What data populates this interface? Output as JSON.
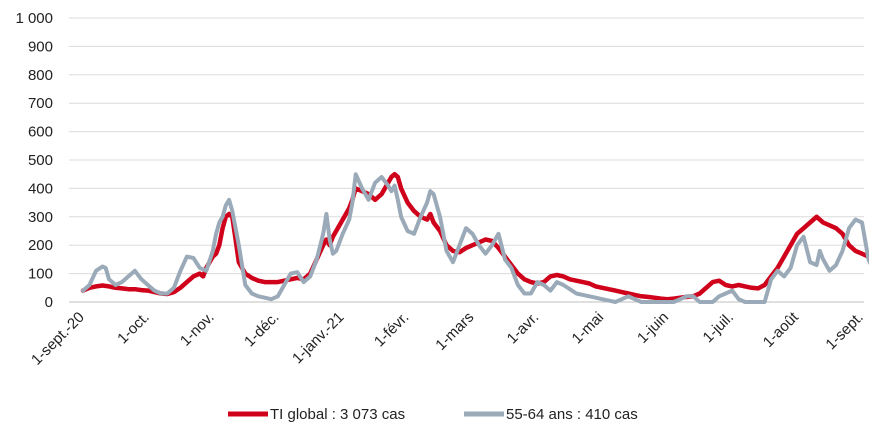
{
  "chart_data": {
    "type": "line",
    "title": "",
    "xlabel": "",
    "ylabel": "",
    "ylim": [
      0,
      1000
    ],
    "yticks": [
      "0",
      "100",
      "200",
      "300",
      "400",
      "500",
      "600",
      "700",
      "800",
      "900",
      "1 000"
    ],
    "grid": "horizontal",
    "legend_position": "bottom",
    "x_categories": [
      "1-sept.-20",
      "1-oct.",
      "1-nov.",
      "1-déc.",
      "1-janv.-21",
      "1-févr.",
      "1-mars",
      "1-avr.",
      "1-mai",
      "1-juin",
      "1-juil.",
      "1-août",
      "1-sept."
    ],
    "series": [
      {
        "name": "TI global : 3 073 cas",
        "color": "#d0021b",
        "points": [
          [
            0,
            40
          ],
          [
            0.1,
            50
          ],
          [
            0.2,
            55
          ],
          [
            0.3,
            58
          ],
          [
            0.4,
            55
          ],
          [
            0.5,
            50
          ],
          [
            0.6,
            48
          ],
          [
            0.7,
            45
          ],
          [
            0.8,
            45
          ],
          [
            0.9,
            42
          ],
          [
            1.0,
            40
          ],
          [
            1.1,
            35
          ],
          [
            1.2,
            30
          ],
          [
            1.3,
            28
          ],
          [
            1.4,
            35
          ],
          [
            1.5,
            50
          ],
          [
            1.6,
            70
          ],
          [
            1.7,
            90
          ],
          [
            1.8,
            100
          ],
          [
            1.85,
            90
          ],
          [
            1.9,
            120
          ],
          [
            2.0,
            160
          ],
          [
            2.05,
            170
          ],
          [
            2.1,
            200
          ],
          [
            2.15,
            260
          ],
          [
            2.2,
            300
          ],
          [
            2.25,
            310
          ],
          [
            2.3,
            300
          ],
          [
            2.35,
            220
          ],
          [
            2.4,
            140
          ],
          [
            2.45,
            120
          ],
          [
            2.5,
            100
          ],
          [
            2.6,
            85
          ],
          [
            2.7,
            75
          ],
          [
            2.8,
            70
          ],
          [
            2.9,
            70
          ],
          [
            3.0,
            70
          ],
          [
            3.1,
            75
          ],
          [
            3.2,
            80
          ],
          [
            3.3,
            85
          ],
          [
            3.4,
            80
          ],
          [
            3.5,
            100
          ],
          [
            3.6,
            150
          ],
          [
            3.7,
            200
          ],
          [
            3.75,
            220
          ],
          [
            3.8,
            200
          ],
          [
            3.85,
            230
          ],
          [
            3.9,
            250
          ],
          [
            4.0,
            290
          ],
          [
            4.1,
            330
          ],
          [
            4.15,
            360
          ],
          [
            4.2,
            400
          ],
          [
            4.3,
            390
          ],
          [
            4.4,
            380
          ],
          [
            4.5,
            360
          ],
          [
            4.6,
            380
          ],
          [
            4.7,
            420
          ],
          [
            4.75,
            440
          ],
          [
            4.8,
            450
          ],
          [
            4.85,
            440
          ],
          [
            4.9,
            400
          ],
          [
            5.0,
            350
          ],
          [
            5.1,
            320
          ],
          [
            5.2,
            300
          ],
          [
            5.3,
            290
          ],
          [
            5.35,
            310
          ],
          [
            5.4,
            280
          ],
          [
            5.5,
            250
          ],
          [
            5.6,
            200
          ],
          [
            5.7,
            180
          ],
          [
            5.8,
            175
          ],
          [
            5.9,
            190
          ],
          [
            6.0,
            200
          ],
          [
            6.1,
            210
          ],
          [
            6.2,
            220
          ],
          [
            6.3,
            215
          ],
          [
            6.4,
            190
          ],
          [
            6.5,
            160
          ],
          [
            6.6,
            130
          ],
          [
            6.7,
            100
          ],
          [
            6.8,
            80
          ],
          [
            6.9,
            70
          ],
          [
            7.0,
            65
          ],
          [
            7.1,
            70
          ],
          [
            7.2,
            90
          ],
          [
            7.3,
            95
          ],
          [
            7.4,
            90
          ],
          [
            7.5,
            80
          ],
          [
            7.6,
            75
          ],
          [
            7.7,
            70
          ],
          [
            7.8,
            65
          ],
          [
            7.9,
            55
          ],
          [
            8.0,
            50
          ],
          [
            8.1,
            45
          ],
          [
            8.2,
            40
          ],
          [
            8.3,
            35
          ],
          [
            8.4,
            30
          ],
          [
            8.5,
            25
          ],
          [
            8.6,
            20
          ],
          [
            8.7,
            18
          ],
          [
            8.8,
            15
          ],
          [
            8.9,
            12
          ],
          [
            9.0,
            10
          ],
          [
            9.1,
            12
          ],
          [
            9.2,
            15
          ],
          [
            9.3,
            18
          ],
          [
            9.4,
            20
          ],
          [
            9.5,
            30
          ],
          [
            9.6,
            50
          ],
          [
            9.7,
            70
          ],
          [
            9.8,
            75
          ],
          [
            9.9,
            60
          ],
          [
            10.0,
            55
          ],
          [
            10.1,
            60
          ],
          [
            10.2,
            55
          ],
          [
            10.3,
            50
          ],
          [
            10.4,
            48
          ],
          [
            10.5,
            60
          ],
          [
            10.6,
            90
          ],
          [
            10.7,
            120
          ],
          [
            10.8,
            160
          ],
          [
            10.9,
            200
          ],
          [
            11.0,
            240
          ],
          [
            11.1,
            260
          ],
          [
            11.2,
            280
          ],
          [
            11.3,
            300
          ],
          [
            11.35,
            290
          ],
          [
            11.4,
            280
          ],
          [
            11.5,
            270
          ],
          [
            11.6,
            260
          ],
          [
            11.7,
            240
          ],
          [
            11.8,
            200
          ],
          [
            11.9,
            180
          ],
          [
            12.0,
            170
          ],
          [
            12.1,
            160
          ],
          [
            12.2,
            150
          ],
          [
            12.3,
            140
          ],
          [
            12.4,
            135
          ],
          [
            12.5,
            130
          ],
          [
            12.6,
            125
          ],
          [
            12.7,
            120
          ],
          [
            12.8,
            118
          ],
          [
            12.9,
            120
          ],
          [
            13.0,
            120
          ]
        ]
      },
      {
        "name": "55-64 ans : 410 cas",
        "color": "#9aaab8",
        "points": [
          [
            0,
            40
          ],
          [
            0.1,
            60
          ],
          [
            0.2,
            110
          ],
          [
            0.3,
            125
          ],
          [
            0.35,
            120
          ],
          [
            0.4,
            80
          ],
          [
            0.5,
            60
          ],
          [
            0.6,
            70
          ],
          [
            0.7,
            90
          ],
          [
            0.8,
            110
          ],
          [
            0.9,
            80
          ],
          [
            1.0,
            60
          ],
          [
            1.1,
            40
          ],
          [
            1.2,
            30
          ],
          [
            1.3,
            30
          ],
          [
            1.4,
            50
          ],
          [
            1.5,
            110
          ],
          [
            1.6,
            160
          ],
          [
            1.7,
            155
          ],
          [
            1.8,
            120
          ],
          [
            1.9,
            110
          ],
          [
            2.0,
            180
          ],
          [
            2.05,
            240
          ],
          [
            2.1,
            280
          ],
          [
            2.15,
            300
          ],
          [
            2.2,
            340
          ],
          [
            2.25,
            360
          ],
          [
            2.3,
            320
          ],
          [
            2.35,
            260
          ],
          [
            2.4,
            200
          ],
          [
            2.5,
            60
          ],
          [
            2.6,
            30
          ],
          [
            2.7,
            20
          ],
          [
            2.8,
            15
          ],
          [
            2.9,
            10
          ],
          [
            3.0,
            20
          ],
          [
            3.1,
            60
          ],
          [
            3.2,
            100
          ],
          [
            3.3,
            105
          ],
          [
            3.4,
            70
          ],
          [
            3.5,
            90
          ],
          [
            3.6,
            150
          ],
          [
            3.7,
            240
          ],
          [
            3.75,
            310
          ],
          [
            3.8,
            220
          ],
          [
            3.85,
            170
          ],
          [
            3.9,
            180
          ],
          [
            4.0,
            240
          ],
          [
            4.1,
            290
          ],
          [
            4.15,
            350
          ],
          [
            4.2,
            450
          ],
          [
            4.3,
            400
          ],
          [
            4.4,
            360
          ],
          [
            4.5,
            420
          ],
          [
            4.6,
            440
          ],
          [
            4.7,
            410
          ],
          [
            4.75,
            390
          ],
          [
            4.8,
            410
          ],
          [
            4.85,
            360
          ],
          [
            4.9,
            300
          ],
          [
            5.0,
            250
          ],
          [
            5.1,
            240
          ],
          [
            5.2,
            300
          ],
          [
            5.3,
            350
          ],
          [
            5.35,
            390
          ],
          [
            5.4,
            380
          ],
          [
            5.5,
            300
          ],
          [
            5.6,
            180
          ],
          [
            5.7,
            140
          ],
          [
            5.8,
            200
          ],
          [
            5.9,
            260
          ],
          [
            6.0,
            240
          ],
          [
            6.1,
            200
          ],
          [
            6.2,
            170
          ],
          [
            6.3,
            200
          ],
          [
            6.4,
            240
          ],
          [
            6.5,
            150
          ],
          [
            6.6,
            120
          ],
          [
            6.7,
            60
          ],
          [
            6.8,
            30
          ],
          [
            6.9,
            30
          ],
          [
            7.0,
            70
          ],
          [
            7.1,
            60
          ],
          [
            7.2,
            40
          ],
          [
            7.3,
            70
          ],
          [
            7.4,
            60
          ],
          [
            7.5,
            45
          ],
          [
            7.6,
            30
          ],
          [
            7.7,
            25
          ],
          [
            7.8,
            20
          ],
          [
            7.9,
            15
          ],
          [
            8.0,
            10
          ],
          [
            8.1,
            5
          ],
          [
            8.2,
            0
          ],
          [
            8.3,
            10
          ],
          [
            8.4,
            20
          ],
          [
            8.5,
            10
          ],
          [
            8.6,
            0
          ],
          [
            8.7,
            0
          ],
          [
            8.8,
            0
          ],
          [
            8.9,
            0
          ],
          [
            9.0,
            0
          ],
          [
            9.1,
            0
          ],
          [
            9.2,
            10
          ],
          [
            9.3,
            20
          ],
          [
            9.4,
            20
          ],
          [
            9.5,
            0
          ],
          [
            9.6,
            0
          ],
          [
            9.7,
            0
          ],
          [
            9.8,
            20
          ],
          [
            9.9,
            30
          ],
          [
            10.0,
            40
          ],
          [
            10.1,
            10
          ],
          [
            10.2,
            0
          ],
          [
            10.3,
            0
          ],
          [
            10.4,
            0
          ],
          [
            10.5,
            0
          ],
          [
            10.6,
            80
          ],
          [
            10.7,
            110
          ],
          [
            10.8,
            90
          ],
          [
            10.9,
            120
          ],
          [
            11.0,
            200
          ],
          [
            11.1,
            230
          ],
          [
            11.2,
            140
          ],
          [
            11.3,
            130
          ],
          [
            11.35,
            180
          ],
          [
            11.4,
            150
          ],
          [
            11.5,
            110
          ],
          [
            11.6,
            130
          ],
          [
            11.7,
            180
          ],
          [
            11.8,
            260
          ],
          [
            11.9,
            290
          ],
          [
            12.0,
            280
          ],
          [
            12.1,
            150
          ],
          [
            12.2,
            100
          ],
          [
            12.3,
            170
          ],
          [
            12.4,
            190
          ],
          [
            12.5,
            150
          ],
          [
            12.6,
            140
          ],
          [
            12.7,
            180
          ],
          [
            12.8,
            130
          ],
          [
            12.9,
            170
          ],
          [
            13.0,
            200
          ]
        ]
      }
    ]
  }
}
